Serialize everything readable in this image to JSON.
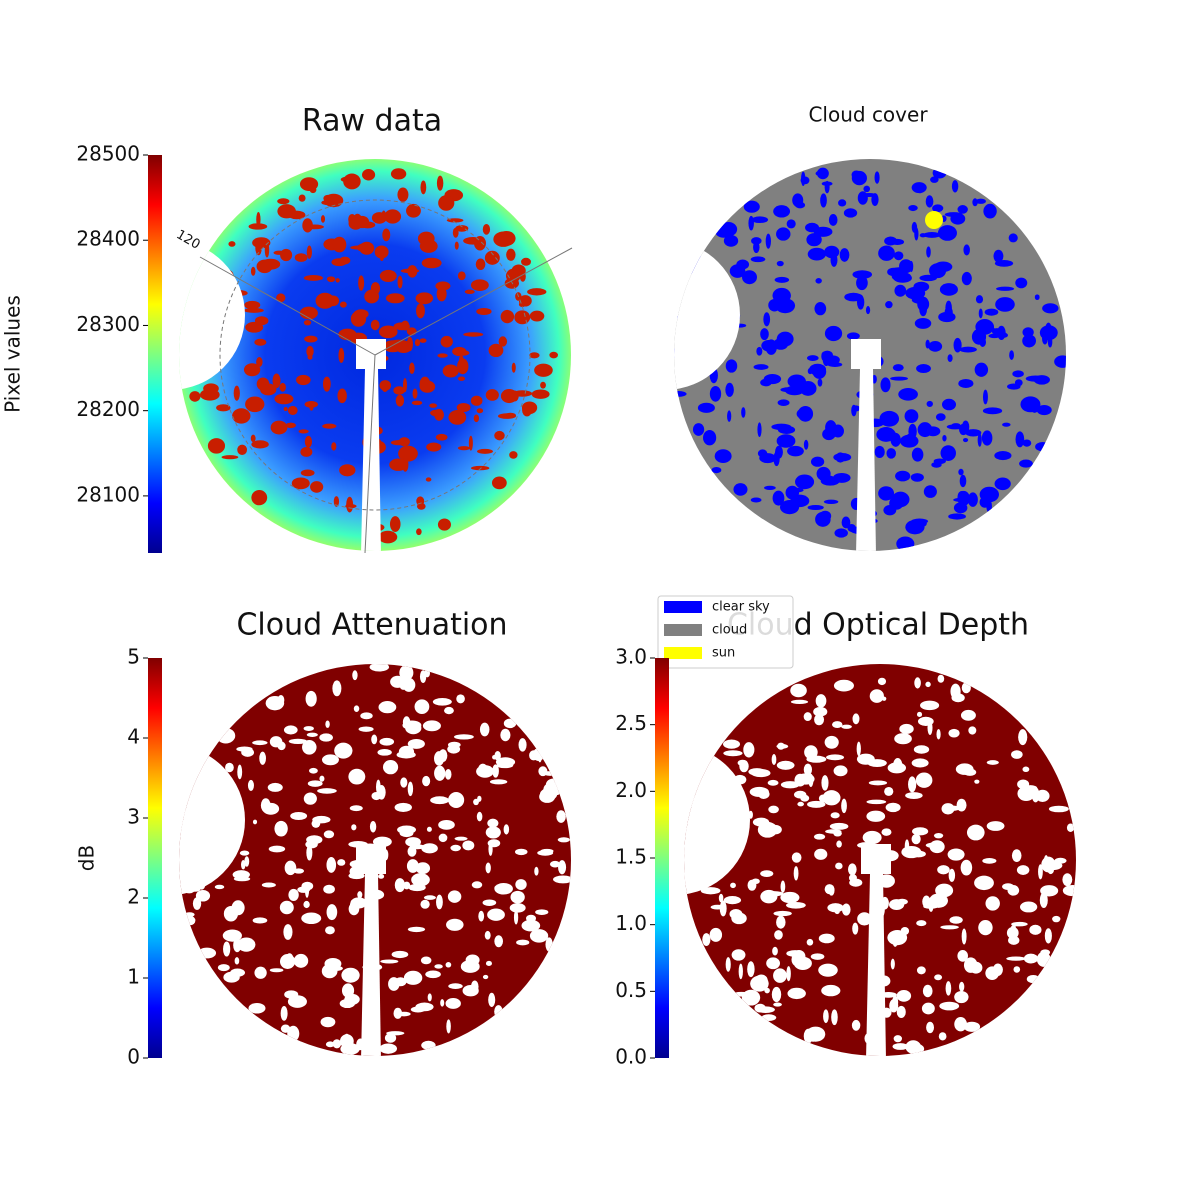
{
  "chart_data": [
    {
      "type": "image",
      "title": "Raw data",
      "colorbar_label": "Pixel values",
      "clim": [
        28033,
        28500
      ],
      "cticks": [
        28100,
        28200,
        28300,
        28400,
        28500
      ],
      "colormap": "jet",
      "azimuth_labels": [
        "120"
      ]
    },
    {
      "type": "classification",
      "title": "Cloud cover",
      "series": [
        {
          "name": "clear sky",
          "color": "#0000ff"
        },
        {
          "name": "cloud",
          "color": "#808080"
        },
        {
          "name": "sun",
          "color": "#ffff00"
        }
      ]
    },
    {
      "type": "image",
      "title": "Cloud Attenuation",
      "colorbar_label": "dB",
      "clim": [
        0,
        5
      ],
      "cticks": [
        0,
        1,
        2,
        3,
        4,
        5
      ],
      "colormap": "jet"
    },
    {
      "type": "image",
      "title": "Cloud Optical Depth",
      "clim": [
        0,
        3
      ],
      "cticks": [
        {
          "value": 0,
          "label": "0.0"
        },
        {
          "value": 0.5,
          "label": "0.5"
        },
        {
          "value": 1,
          "label": "1.0"
        },
        {
          "value": 1.5,
          "label": "1.5"
        },
        {
          "value": 2,
          "label": "2.0"
        },
        {
          "value": 2.5,
          "label": "2.5"
        },
        {
          "value": 3,
          "label": "3.0"
        }
      ],
      "colormap": "jet"
    }
  ]
}
